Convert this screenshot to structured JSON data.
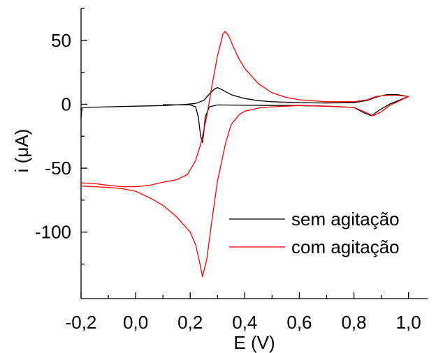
{
  "chart_data": {
    "type": "line",
    "xlabel": "E (V)",
    "ylabel": "i (μA)",
    "xlim": [
      -0.2,
      1.07
    ],
    "ylim": [
      -152,
      75
    ],
    "x_ticks": [
      -0.2,
      0.0,
      0.2,
      0.4,
      0.6,
      0.8,
      1.0
    ],
    "x_tick_labels": [
      "-0,2",
      "0,0",
      "0,2",
      "0,4",
      "0,6",
      "0,8",
      "1,0"
    ],
    "y_ticks": [
      50,
      0,
      -50,
      -100
    ],
    "y_tick_labels": [
      "50",
      "0",
      "-50",
      "-100"
    ],
    "legend": {
      "position": "lower-right"
    },
    "series": [
      {
        "name": "sem agitação",
        "color": "#000000",
        "points": [
          [
            -0.2,
            -11
          ],
          [
            -0.197,
            -3
          ],
          [
            -0.18,
            -2.5
          ],
          [
            -0.1,
            -2
          ],
          [
            0.0,
            -1.5
          ],
          [
            0.1,
            -1
          ],
          [
            0.18,
            -0.2
          ],
          [
            0.22,
            0.6
          ],
          [
            0.25,
            3
          ],
          [
            0.27,
            8
          ],
          [
            0.29,
            12
          ],
          [
            0.3,
            13
          ],
          [
            0.32,
            11
          ],
          [
            0.35,
            7.5
          ],
          [
            0.4,
            4.5
          ],
          [
            0.45,
            2.8
          ],
          [
            0.5,
            2
          ],
          [
            0.6,
            1.2
          ],
          [
            0.7,
            1
          ],
          [
            0.8,
            1.2
          ],
          [
            0.85,
            3
          ],
          [
            0.88,
            5.5
          ],
          [
            0.92,
            7.5
          ],
          [
            0.96,
            7.5
          ],
          [
            1.0,
            6
          ],
          [
            0.97,
            3.5
          ],
          [
            0.93,
            0
          ],
          [
            0.89,
            -5
          ],
          [
            0.865,
            -9
          ],
          [
            0.84,
            -7
          ],
          [
            0.8,
            -2.5
          ],
          [
            0.7,
            -1.5
          ],
          [
            0.6,
            -1
          ],
          [
            0.4,
            -0.8
          ],
          [
            0.3,
            -0.5
          ],
          [
            0.27,
            -2
          ],
          [
            0.255,
            -10
          ],
          [
            0.25,
            -22
          ],
          [
            0.245,
            -30
          ],
          [
            0.238,
            -25
          ],
          [
            0.23,
            -10
          ],
          [
            0.22,
            -2
          ],
          [
            0.2,
            -0.5
          ],
          [
            0.1,
            -0.3
          ]
        ]
      },
      {
        "name": "com agitação",
        "color": "#ff0000",
        "points": [
          [
            -0.2,
            -61.5
          ],
          [
            -0.15,
            -62
          ],
          [
            -0.1,
            -63.5
          ],
          [
            -0.05,
            -64.5
          ],
          [
            0.0,
            -64.5
          ],
          [
            0.05,
            -63.5
          ],
          [
            0.1,
            -61
          ],
          [
            0.15,
            -59
          ],
          [
            0.19,
            -55
          ],
          [
            0.22,
            -44
          ],
          [
            0.24,
            -30
          ],
          [
            0.26,
            -10
          ],
          [
            0.28,
            15
          ],
          [
            0.3,
            38
          ],
          [
            0.32,
            55
          ],
          [
            0.327,
            57
          ],
          [
            0.34,
            54
          ],
          [
            0.36,
            44
          ],
          [
            0.38,
            35
          ],
          [
            0.4,
            28
          ],
          [
            0.45,
            16
          ],
          [
            0.5,
            9
          ],
          [
            0.55,
            5.5
          ],
          [
            0.6,
            3.5
          ],
          [
            0.7,
            2
          ],
          [
            0.8,
            2
          ],
          [
            0.85,
            3.5
          ],
          [
            0.88,
            6
          ],
          [
            0.92,
            7
          ],
          [
            0.96,
            7
          ],
          [
            1.0,
            6
          ],
          [
            0.97,
            3
          ],
          [
            0.93,
            -1
          ],
          [
            0.9,
            -6
          ],
          [
            0.87,
            -9
          ],
          [
            0.85,
            -7
          ],
          [
            0.8,
            -2.5
          ],
          [
            0.7,
            -1.5
          ],
          [
            0.6,
            -1
          ],
          [
            0.5,
            -2
          ],
          [
            0.45,
            -3
          ],
          [
            0.4,
            -5.5
          ],
          [
            0.38,
            -8
          ],
          [
            0.35,
            -16
          ],
          [
            0.33,
            -30
          ],
          [
            0.3,
            -60
          ],
          [
            0.28,
            -90
          ],
          [
            0.26,
            -122
          ],
          [
            0.245,
            -135
          ],
          [
            0.235,
            -124
          ],
          [
            0.22,
            -110
          ],
          [
            0.2,
            -100
          ],
          [
            0.15,
            -88
          ],
          [
            0.1,
            -79
          ],
          [
            0.05,
            -73
          ],
          [
            0.0,
            -68
          ],
          [
            -0.05,
            -66
          ],
          [
            -0.1,
            -65
          ],
          [
            -0.2,
            -64
          ]
        ]
      }
    ]
  }
}
